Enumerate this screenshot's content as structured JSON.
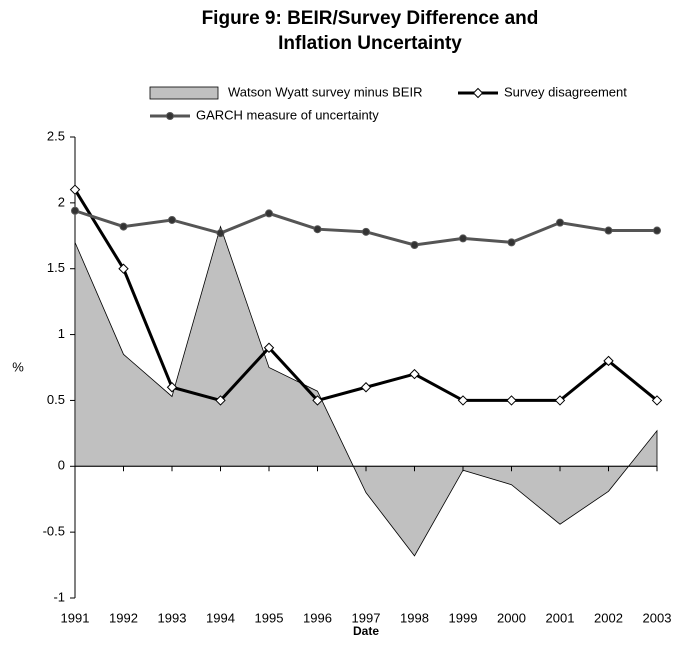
{
  "chart_data": {
    "type": "line",
    "title": "Figure 9: BEIR/Survey Difference and Inflation Uncertainty",
    "x_label": "Date",
    "y_label": "%",
    "categories": [
      "1991",
      "1992",
      "1993",
      "1994",
      "1995",
      "1996",
      "1997",
      "1998",
      "1999",
      "2000",
      "2001",
      "2002",
      "2003"
    ],
    "series": [
      {
        "name": "Watson Wyatt survey minus BEIR",
        "kind": "area",
        "color": "#c0c0c0",
        "values": [
          1.7,
          0.85,
          0.53,
          1.82,
          0.75,
          0.57,
          -0.2,
          -0.68,
          -0.03,
          -0.14,
          -0.44,
          -0.19,
          0.27
        ]
      },
      {
        "name": "Survey disagreement",
        "kind": "line",
        "color": "#000000",
        "marker": "diamond",
        "values": [
          2.1,
          1.5,
          0.6,
          0.5,
          0.9,
          0.5,
          0.6,
          0.7,
          0.5,
          0.5,
          0.5,
          0.8,
          0.5
        ]
      },
      {
        "name": "GARCH measure of uncertainty",
        "kind": "line",
        "color": "#555555",
        "marker": "circle",
        "values": [
          1.94,
          1.82,
          1.87,
          1.77,
          1.92,
          1.8,
          1.78,
          1.68,
          1.73,
          1.7,
          1.85,
          1.79,
          1.79
        ]
      }
    ],
    "ylim": [
      -1,
      2.5
    ],
    "yticks": [
      -1,
      -0.5,
      0,
      0.5,
      1,
      1.5,
      2,
      2.5
    ],
    "grid": false
  }
}
